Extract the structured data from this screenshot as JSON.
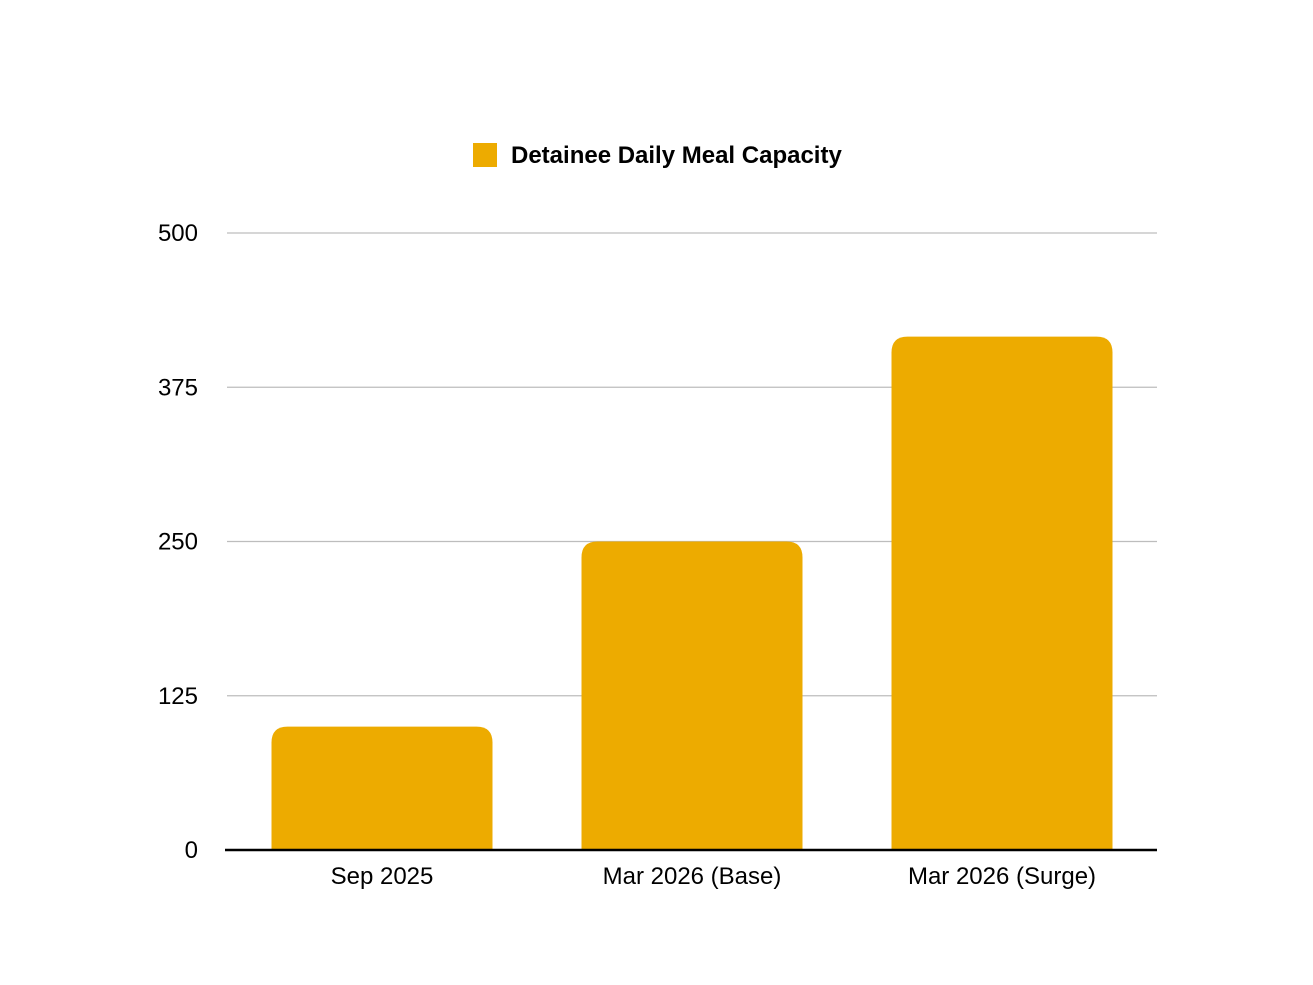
{
  "chart_data": {
    "type": "bar",
    "categories": [
      "Sep 2025",
      "Mar 2026 (Base)",
      "Mar 2026 (Surge)"
    ],
    "series": [
      {
        "name": "Detainee Daily Meal Capacity",
        "values": [
          100,
          250,
          416
        ],
        "color": "#EDAB00"
      }
    ],
    "ylim": [
      0,
      500
    ],
    "yticks": [
      0,
      125,
      250,
      375,
      500
    ],
    "grid": true,
    "legend_position": "top-center",
    "title": "",
    "xlabel": "",
    "ylabel": ""
  }
}
